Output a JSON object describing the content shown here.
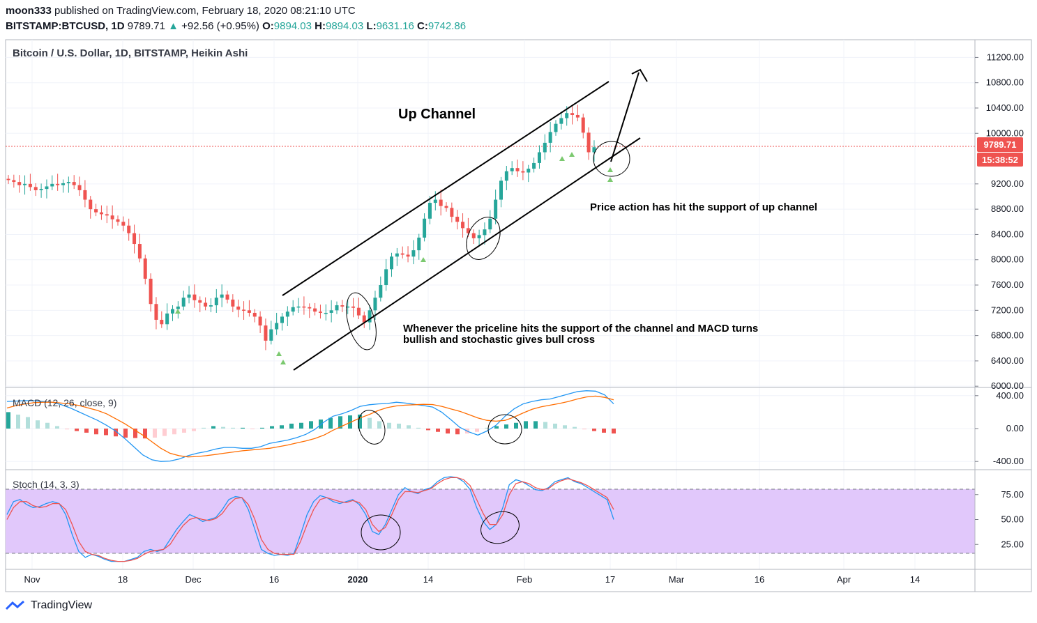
{
  "header": {
    "author": "moon333",
    "published_text": "published on TradingView.com, February 18, 2020 08:21:10 UTC",
    "symbol": "BITSTAMP:BTCUSD, 1D",
    "last": "9789.71",
    "change": "+92.56 (+0.95%)",
    "o_label": "O:",
    "o": "9894.03",
    "h_label": "H:",
    "h": "9894.03",
    "l_label": "L:",
    "l": "9631.16",
    "c_label": "C:",
    "c": "9742.86"
  },
  "footer": {
    "brand": "TradingView"
  },
  "colors": {
    "up": "#26a69a",
    "down": "#ef5350",
    "stoch_band": "#e1bee7",
    "macd_line": "#2196f3",
    "signal_line": "#ff6d00"
  },
  "chart_data": [
    {
      "type": "candlestick",
      "title": "Bitcoin / U.S. Dollar, 1D, BITSTAMP, Heikin Ashi",
      "y_ticks": [
        "11200.00",
        "10800.00",
        "10400.00",
        "10000.00",
        "9200.00",
        "8800.00",
        "8400.00",
        "8000.00",
        "7600.00",
        "7200.00",
        "6800.00",
        "6400.00",
        "6000.00"
      ],
      "ylim": [
        5980,
        11480
      ],
      "x_ticks": [
        "Nov",
        "18",
        "Dec",
        "16",
        "2020",
        "14",
        "Feb",
        "17",
        "Mar",
        "16",
        "Apr",
        "14"
      ],
      "last_price_label": "9789.71",
      "countdown_label": "15:38:52",
      "annotations": {
        "title": "Up Channel",
        "support_note": "Price action has hit the support of up channel",
        "signal_note_line1": "Whenever the priceline hits the support of the channel and MACD turns",
        "signal_note_line2": "bullish and stochastic gives bull cross"
      },
      "closes": [
        9260,
        9230,
        9180,
        9200,
        9150,
        9100,
        9120,
        9160,
        9200,
        9180,
        9210,
        9230,
        9180,
        9100,
        8950,
        8800,
        8750,
        8720,
        8700,
        8640,
        8600,
        8540,
        8420,
        8250,
        8020,
        7700,
        7300,
        7050,
        6980,
        7150,
        7220,
        7260,
        7400,
        7450,
        7360,
        7320,
        7260,
        7280,
        7400,
        7450,
        7370,
        7260,
        7210,
        7200,
        7160,
        7100,
        6960,
        6720,
        6900,
        7000,
        7100,
        7180,
        7250,
        7260,
        7250,
        7230,
        7180,
        7160,
        7160,
        7200,
        7280,
        7260,
        7260,
        7240,
        7120,
        7010,
        7200,
        7400,
        7600,
        7850,
        8050,
        8100,
        8080,
        8050,
        8150,
        8350,
        8650,
        8900,
        8950,
        8850,
        8820,
        8680,
        8600,
        8500,
        8420,
        8340,
        8390,
        8480,
        8650,
        8950,
        9250,
        9400,
        9450,
        9400,
        9380,
        9440,
        9530,
        9700,
        9850,
        10020,
        10150,
        10240,
        10320,
        10290,
        10250,
        10010,
        9700,
        9780
      ]
    },
    {
      "type": "line",
      "title": "MACD (12, 26, close, 9)",
      "y_ticks": [
        "400.00",
        "0.00",
        "-400.00"
      ],
      "ylim": [
        -500,
        500
      ],
      "series": [
        {
          "values": [
            330,
            335,
            340,
            338,
            330,
            320,
            290,
            250,
            200,
            150,
            100,
            40,
            -30,
            -120,
            -220,
            -320,
            -380,
            -400,
            -395,
            -370,
            -330,
            -300,
            -280,
            -250,
            -230,
            -230,
            -240,
            -240,
            -220,
            -180,
            -160,
            -140,
            -110,
            -70,
            -10,
            80,
            150,
            180,
            220,
            270,
            290,
            300,
            305,
            320,
            310,
            295,
            280,
            262,
            200,
            110,
            15,
            -40,
            -80,
            -30,
            40,
            150,
            240,
            300,
            330,
            350,
            360,
            390,
            420,
            450,
            460,
            455,
            410,
            300
          ]
        },
        {
          "values": [
            250,
            280,
            300,
            315,
            320,
            320,
            310,
            300,
            280,
            250,
            220,
            180,
            120,
            60,
            -10,
            -80,
            -160,
            -240,
            -300,
            -330,
            -345,
            -340,
            -330,
            -315,
            -300,
            -285,
            -270,
            -260,
            -250,
            -240,
            -220,
            -200,
            -175,
            -150,
            -120,
            -80,
            -20,
            30,
            80,
            130,
            170,
            220,
            255,
            275,
            285,
            290,
            295,
            292,
            270,
            240,
            210,
            170,
            130,
            100,
            90,
            100,
            140,
            190,
            235,
            265,
            285,
            305,
            330,
            360,
            385,
            395,
            380,
            350
          ]
        },
        {
          "values": [
            200,
            170,
            140,
            100,
            70,
            30,
            -10,
            -30,
            -50,
            -70,
            -80,
            -95,
            -110,
            -115,
            -120,
            -110,
            -90,
            -70,
            -50,
            -30,
            10,
            30,
            20,
            10,
            10,
            -5,
            10,
            30,
            40,
            60,
            70,
            90,
            110,
            130,
            150,
            160,
            170,
            130,
            90,
            70,
            60,
            40,
            10,
            -20,
            -40,
            -60,
            -70,
            -60,
            -40,
            10,
            30,
            50,
            70,
            90,
            90,
            80,
            60,
            40,
            20,
            -10,
            -30,
            -50,
            -60
          ]
        }
      ]
    },
    {
      "type": "line",
      "title": "Stoch (14, 3, 3)",
      "y_ticks": [
        "75.00",
        "50.00",
        "25.00"
      ],
      "ylim": [
        0,
        100
      ],
      "band": [
        20,
        80
      ],
      "series": [
        {
          "values": [
            55,
            68,
            70,
            65,
            62,
            63,
            66,
            68,
            66,
            55,
            35,
            18,
            12,
            15,
            13,
            10,
            8,
            8,
            8,
            10,
            12,
            18,
            20,
            18,
            20,
            30,
            40,
            48,
            55,
            52,
            48,
            50,
            52,
            60,
            70,
            73,
            72,
            60,
            40,
            20,
            16,
            14,
            15,
            14,
            16,
            35,
            55,
            68,
            74,
            72,
            68,
            66,
            68,
            70,
            65,
            55,
            38,
            35,
            45,
            60,
            75,
            82,
            78,
            76,
            80,
            82,
            88,
            92,
            93,
            92,
            88,
            80,
            62,
            48,
            40,
            45,
            62,
            85,
            90,
            88,
            84,
            80,
            79,
            82,
            88,
            90,
            92,
            88,
            86,
            82,
            78,
            74,
            70,
            50
          ]
        },
        {
          "values": [
            50,
            62,
            68,
            68,
            64,
            62,
            63,
            66,
            66,
            60,
            45,
            28,
            18,
            15,
            14,
            11,
            9,
            8,
            8,
            9,
            11,
            15,
            18,
            19,
            20,
            25,
            35,
            44,
            50,
            52,
            50,
            49,
            51,
            56,
            65,
            71,
            72,
            65,
            50,
            30,
            20,
            16,
            15,
            15,
            15,
            28,
            45,
            60,
            70,
            72,
            70,
            68,
            67,
            69,
            67,
            60,
            45,
            38,
            42,
            55,
            70,
            78,
            78,
            77,
            79,
            81,
            86,
            90,
            92,
            92,
            90,
            84,
            70,
            56,
            45,
            45,
            55,
            75,
            86,
            88,
            86,
            82,
            80,
            81,
            86,
            89,
            91,
            89,
            87,
            84,
            80,
            76,
            72,
            60
          ]
        }
      ]
    }
  ]
}
